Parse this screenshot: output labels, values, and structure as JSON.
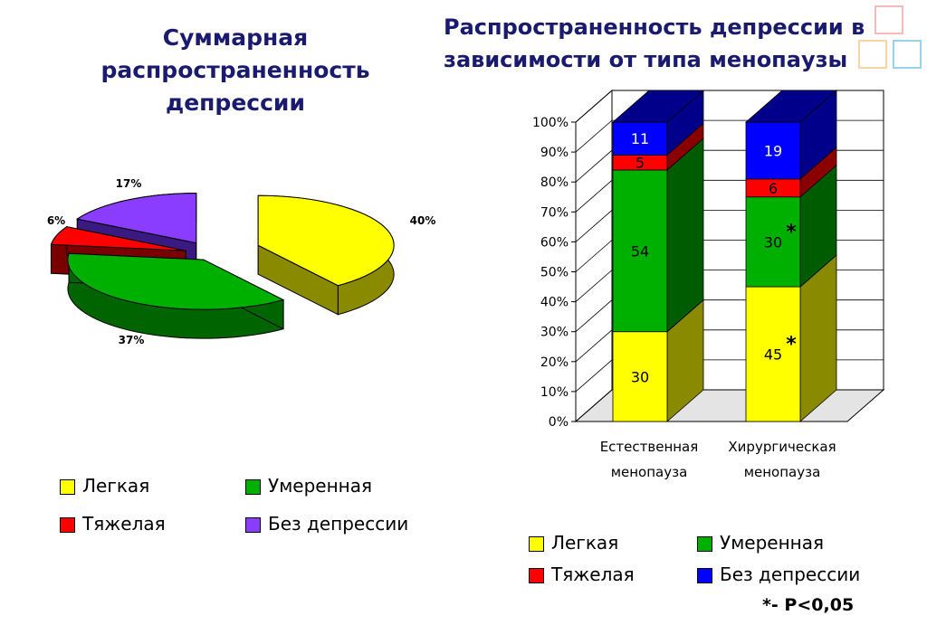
{
  "decor": [
    "face-icon",
    "face-icon",
    "face-icon"
  ],
  "chart_data": [
    {
      "type": "pie",
      "title": [
        "Суммарная",
        "распространенность",
        "депрессии"
      ],
      "slices": [
        {
          "name": "Легкая",
          "value": 40,
          "label": "40%",
          "color": "#ffff00",
          "side": "#8a8a00"
        },
        {
          "name": "Умеренная",
          "value": 37,
          "label": "37%",
          "color": "#00b000",
          "side": "#006400"
        },
        {
          "name": "Тяжелая",
          "value": 6,
          "label": "6%",
          "color": "#ff0000",
          "side": "#7a0000"
        },
        {
          "name": "Без депрессии",
          "value": 17,
          "label": "17%",
          "color": "#8a3cff",
          "side": "#3a1a80"
        }
      ],
      "legend": [
        "Легкая",
        "Умеренная",
        "Тяжелая",
        "Без депрессии"
      ]
    },
    {
      "type": "bar",
      "stacked": true,
      "title": [
        "Распространенность депрессии в",
        "зависимости от типа менопаузы"
      ],
      "categories": [
        [
          "Естественная",
          "менопауза"
        ],
        [
          "Хирургическая",
          "менопауза"
        ]
      ],
      "ylim": [
        0,
        100
      ],
      "yticks": [
        "0%",
        "10%",
        "20%",
        "30%",
        "40%",
        "50%",
        "60%",
        "70%",
        "80%",
        "90%",
        "100%"
      ],
      "series": [
        {
          "name": "Легкая",
          "values": [
            30,
            45
          ],
          "labels": [
            "30",
            "45"
          ],
          "color": "#ffff00",
          "side": "#8a8a00"
        },
        {
          "name": "Умеренная",
          "values": [
            54,
            30
          ],
          "labels": [
            "54",
            "30"
          ],
          "color": "#00b000",
          "side": "#005c00"
        },
        {
          "name": "Тяжелая",
          "values": [
            5,
            6
          ],
          "labels": [
            "5",
            "6"
          ],
          "color": "#ff0000",
          "side": "#8a0000"
        },
        {
          "name": "Без депрессии",
          "values": [
            11,
            19
          ],
          "labels": [
            "11",
            "19"
          ],
          "color": "#0000ff",
          "side": "#00008a"
        }
      ],
      "stars": [
        [
          false,
          true
        ],
        [
          false,
          true
        ],
        [
          false,
          false
        ],
        [
          false,
          false
        ]
      ],
      "star_symbol": "*",
      "grid": true,
      "legend": [
        "Легкая",
        "Умеренная",
        "Тяжелая",
        "Без депрессии"
      ],
      "note": "*- P<0,05"
    }
  ]
}
